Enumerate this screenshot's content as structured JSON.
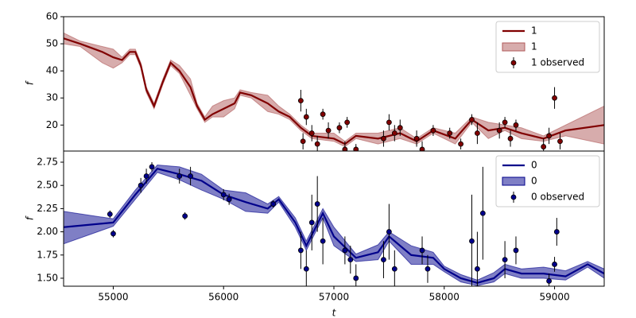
{
  "chart_data": [
    {
      "type": "line",
      "ylabel": "f",
      "xlim": [
        54550,
        59450
      ],
      "ylim": [
        10.4,
        60
      ],
      "yticks": [
        20,
        30,
        40,
        50,
        60
      ],
      "legend": "upper right",
      "series": [
        {
          "type": "line",
          "name": "1",
          "color": "#800000",
          "x": [
            54550,
            54700,
            54900,
            55000,
            55080,
            55150,
            55200,
            55250,
            55300,
            55370,
            55450,
            55520,
            55600,
            55700,
            55760,
            55830,
            55900,
            56000,
            56100,
            56150,
            56250,
            56400,
            56500,
            56600,
            56700,
            56800,
            57000,
            57100,
            57200,
            57400,
            57600,
            57750,
            57900,
            58100,
            58250,
            58400,
            58550,
            58700,
            58900,
            59100,
            59450
          ],
          "values": [
            52,
            50,
            47,
            45,
            44,
            47,
            47,
            42,
            33,
            27,
            36,
            43,
            40,
            34,
            27,
            22,
            24,
            26,
            28,
            32,
            31,
            28,
            25,
            23,
            19,
            16,
            15,
            13,
            16,
            15,
            17,
            14,
            18,
            15,
            22,
            18,
            19,
            17,
            15,
            18,
            20
          ]
        },
        {
          "type": "band",
          "name": "1",
          "color": "#b05a5a",
          "x": [
            54550,
            54700,
            54900,
            55000,
            55080,
            55150,
            55200,
            55250,
            55300,
            55370,
            55450,
            55520,
            55600,
            55700,
            55760,
            55830,
            55900,
            56000,
            56100,
            56150,
            56250,
            56400,
            56500,
            56600,
            56700,
            56800,
            57000,
            57100,
            57200,
            57400,
            57600,
            57750,
            57900,
            58100,
            58250,
            58400,
            58550,
            58700,
            58900,
            59100,
            59450
          ],
          "lower": [
            50,
            49,
            43,
            41,
            43,
            46,
            46,
            41,
            32,
            26,
            35,
            42,
            39,
            31,
            26,
            21,
            23,
            23,
            26,
            31,
            30,
            25,
            24,
            22,
            18,
            15,
            14,
            12,
            15,
            13,
            15,
            13,
            17,
            13,
            21,
            15,
            18,
            15,
            14,
            16,
            13
          ],
          "upper": [
            54,
            51,
            49,
            48,
            45,
            48,
            48,
            43,
            34,
            28,
            37,
            44,
            42,
            37,
            28,
            23,
            27,
            29,
            30,
            33,
            32,
            31,
            27,
            24,
            20,
            17,
            17,
            14,
            17,
            17,
            19,
            15,
            19,
            17,
            23,
            21,
            20,
            19,
            16,
            20,
            27
          ]
        },
        {
          "type": "errorbar",
          "name": "1 observed",
          "color": "#800000",
          "x": [
            56700,
            56720,
            56750,
            56800,
            56850,
            56900,
            56950,
            57050,
            57100,
            57120,
            57200,
            57450,
            57500,
            57550,
            57600,
            57750,
            57800,
            57900,
            58050,
            58150,
            58250,
            58300,
            58500,
            58550,
            58600,
            58650,
            58900,
            58950,
            59000,
            59050
          ],
          "values": [
            29,
            14,
            23,
            17,
            13,
            24,
            18,
            19,
            11,
            21,
            11,
            15,
            21,
            17,
            19,
            15,
            11,
            18,
            17,
            13,
            22,
            17,
            18,
            21,
            15,
            20,
            12,
            16,
            30,
            14
          ],
          "errors": [
            4,
            3,
            3,
            3,
            3,
            2,
            3,
            2,
            3,
            2,
            2,
            3,
            3,
            3,
            3,
            3,
            3,
            2,
            2,
            2,
            2,
            4,
            3,
            2,
            3,
            2,
            3,
            3,
            4,
            3
          ]
        }
      ]
    },
    {
      "type": "line",
      "ylabel": "f",
      "xlabel": "t",
      "xlim": [
        54550,
        59450
      ],
      "xticks": [
        55000,
        56000,
        57000,
        58000,
        59000
      ],
      "ylim": [
        1.414,
        2.87
      ],
      "yticks": [
        {
          "value": 1.5,
          "label": "1.50"
        },
        {
          "value": 1.75,
          "label": "1.75"
        },
        {
          "value": 2.0,
          "label": "2.00"
        },
        {
          "value": 2.25,
          "label": "2.25"
        },
        {
          "value": 2.5,
          "label": "2.50"
        },
        {
          "value": 2.75,
          "label": "2.75"
        }
      ],
      "legend": "upper right",
      "series": [
        {
          "type": "line",
          "name": "0",
          "color": "#00008b",
          "x": [
            54550,
            55000,
            55200,
            55400,
            55600,
            55800,
            56000,
            56200,
            56400,
            56500,
            56650,
            56750,
            56900,
            57000,
            57200,
            57400,
            57500,
            57700,
            57900,
            58000,
            58150,
            58300,
            58450,
            58550,
            58700,
            58900,
            59100,
            59300,
            59450
          ],
          "values": [
            2.05,
            2.1,
            2.4,
            2.68,
            2.62,
            2.55,
            2.4,
            2.32,
            2.25,
            2.35,
            2.1,
            1.85,
            2.2,
            1.95,
            1.72,
            1.78,
            1.95,
            1.75,
            1.72,
            1.6,
            1.5,
            1.45,
            1.5,
            1.6,
            1.55,
            1.55,
            1.52,
            1.65,
            1.55
          ]
        },
        {
          "type": "band",
          "name": "0",
          "color": "#00008b",
          "x": [
            54550,
            55000,
            55200,
            55400,
            55600,
            55800,
            56000,
            56200,
            56400,
            56500,
            56650,
            56750,
            56900,
            57000,
            57200,
            57400,
            57500,
            57700,
            57900,
            58000,
            58150,
            58300,
            58450,
            58550,
            58700,
            58900,
            59100,
            59300,
            59450
          ],
          "lower": [
            1.87,
            2.06,
            2.35,
            2.64,
            2.56,
            2.45,
            2.35,
            2.22,
            2.2,
            2.32,
            2.05,
            1.8,
            2.15,
            1.85,
            1.68,
            1.7,
            1.9,
            1.65,
            1.65,
            1.57,
            1.46,
            1.42,
            1.46,
            1.55,
            1.5,
            1.5,
            1.48,
            1.62,
            1.5
          ],
          "upper": [
            2.22,
            2.14,
            2.45,
            2.72,
            2.7,
            2.62,
            2.45,
            2.42,
            2.3,
            2.38,
            2.15,
            1.9,
            2.25,
            2.05,
            1.76,
            1.86,
            2.0,
            1.85,
            1.78,
            1.63,
            1.54,
            1.48,
            1.56,
            1.65,
            1.6,
            1.62,
            1.58,
            1.68,
            1.6
          ]
        },
        {
          "type": "errorbar",
          "name": "0 observed",
          "color": "#00008b",
          "x": [
            54970,
            55000,
            55250,
            55300,
            55350,
            55600,
            55650,
            55700,
            56000,
            56050,
            56450,
            56700,
            56750,
            56800,
            56850,
            56900,
            57100,
            57150,
            57200,
            57450,
            57500,
            57550,
            57800,
            57850,
            58250,
            58300,
            58350,
            58550,
            58650,
            58950,
            59000,
            59020
          ],
          "values": [
            2.19,
            1.98,
            2.5,
            2.6,
            2.7,
            2.6,
            2.17,
            2.6,
            2.4,
            2.35,
            2.3,
            1.8,
            1.6,
            2.1,
            2.3,
            1.9,
            1.8,
            1.7,
            1.5,
            1.7,
            2.0,
            1.6,
            1.8,
            1.6,
            1.9,
            1.6,
            2.2,
            1.7,
            1.8,
            1.47,
            1.65,
            2.0
          ],
          "errors": [
            0.04,
            0.04,
            0.08,
            0.08,
            0.05,
            0.08,
            0.04,
            0.1,
            0.06,
            0.06,
            0.04,
            0.2,
            0.2,
            0.3,
            0.3,
            0.25,
            0.15,
            0.15,
            0.15,
            0.2,
            0.3,
            0.2,
            0.15,
            0.15,
            0.5,
            0.4,
            0.5,
            0.2,
            0.15,
            0.08,
            0.08,
            0.15
          ]
        }
      ]
    }
  ]
}
